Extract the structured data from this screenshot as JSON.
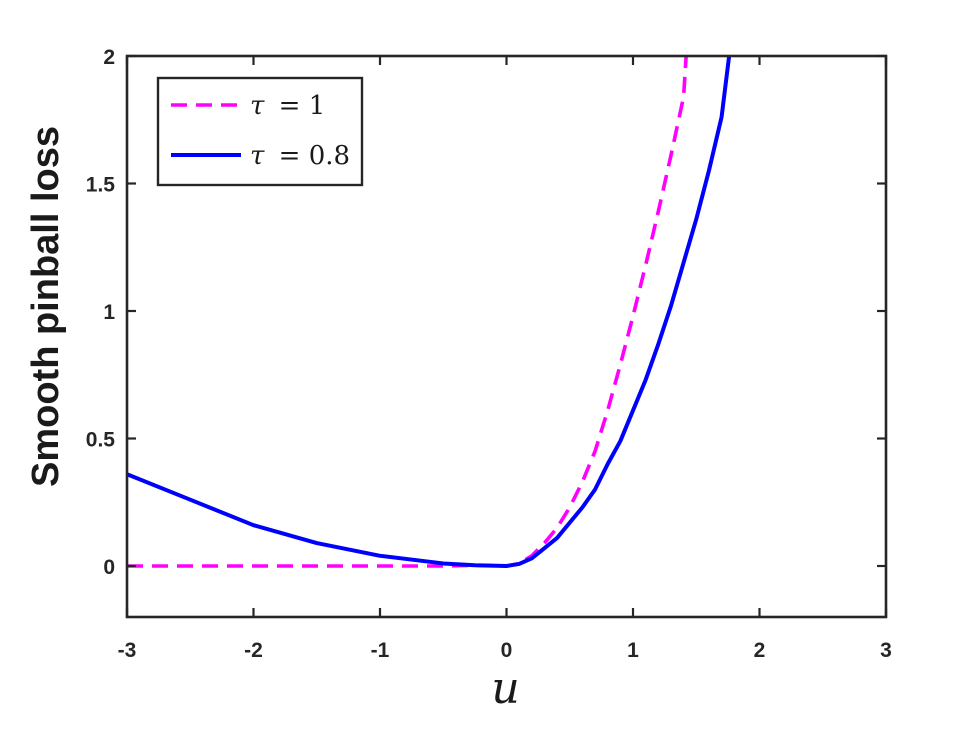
{
  "chart_data": {
    "type": "line",
    "xlabel": "u",
    "ylabel": "Smooth pinball loss",
    "xlim": [
      -3,
      3
    ],
    "ylim": [
      -0.2,
      2
    ],
    "xticks": [
      -3,
      -2,
      -1,
      0,
      1,
      2,
      3
    ],
    "xtick_labels": [
      "-3",
      "-2",
      "-1",
      "0",
      "1",
      "2",
      "3"
    ],
    "yticks": [
      0,
      0.5,
      1,
      1.5,
      2
    ],
    "ytick_labels": [
      "0",
      "0.5",
      "1",
      "1.5",
      "2"
    ],
    "grid": false,
    "legend_position": "top-left",
    "series": [
      {
        "name": "τ = 1",
        "legend_symbol": "τ",
        "legend_value": "= 1",
        "color": "#ff00ff",
        "style": "dashed",
        "x": [
          -3,
          -2.5,
          -2,
          -1.5,
          -1,
          -0.5,
          -0.25,
          0,
          0.1,
          0.2,
          0.3,
          0.4,
          0.5,
          0.6,
          0.7,
          0.8,
          0.9,
          1.0,
          1.1,
          1.2,
          1.3,
          1.4,
          1.42
        ],
        "y": [
          0,
          0,
          0,
          0,
          0,
          0,
          0.003,
          0.0,
          0.01,
          0.04,
          0.09,
          0.15,
          0.23,
          0.33,
          0.45,
          0.61,
          0.79,
          0.98,
          1.18,
          1.39,
          1.61,
          1.84,
          2.0
        ]
      },
      {
        "name": "τ = 0.8",
        "legend_symbol": "τ",
        "legend_value": "= 0.8",
        "color": "#0000ff",
        "style": "solid",
        "x": [
          -3,
          -2.5,
          -2,
          -1.5,
          -1,
          -0.5,
          -0.25,
          0,
          0.1,
          0.2,
          0.3,
          0.4,
          0.5,
          0.6,
          0.7,
          0.8,
          0.9,
          1.0,
          1.1,
          1.2,
          1.3,
          1.4,
          1.5,
          1.6,
          1.7,
          1.76
        ],
        "y": [
          0.36,
          0.26,
          0.16,
          0.09,
          0.04,
          0.01,
          0.003,
          0.0,
          0.008,
          0.03,
          0.07,
          0.11,
          0.17,
          0.23,
          0.3,
          0.4,
          0.49,
          0.61,
          0.73,
          0.87,
          1.02,
          1.19,
          1.36,
          1.55,
          1.76,
          2.0
        ]
      }
    ]
  }
}
